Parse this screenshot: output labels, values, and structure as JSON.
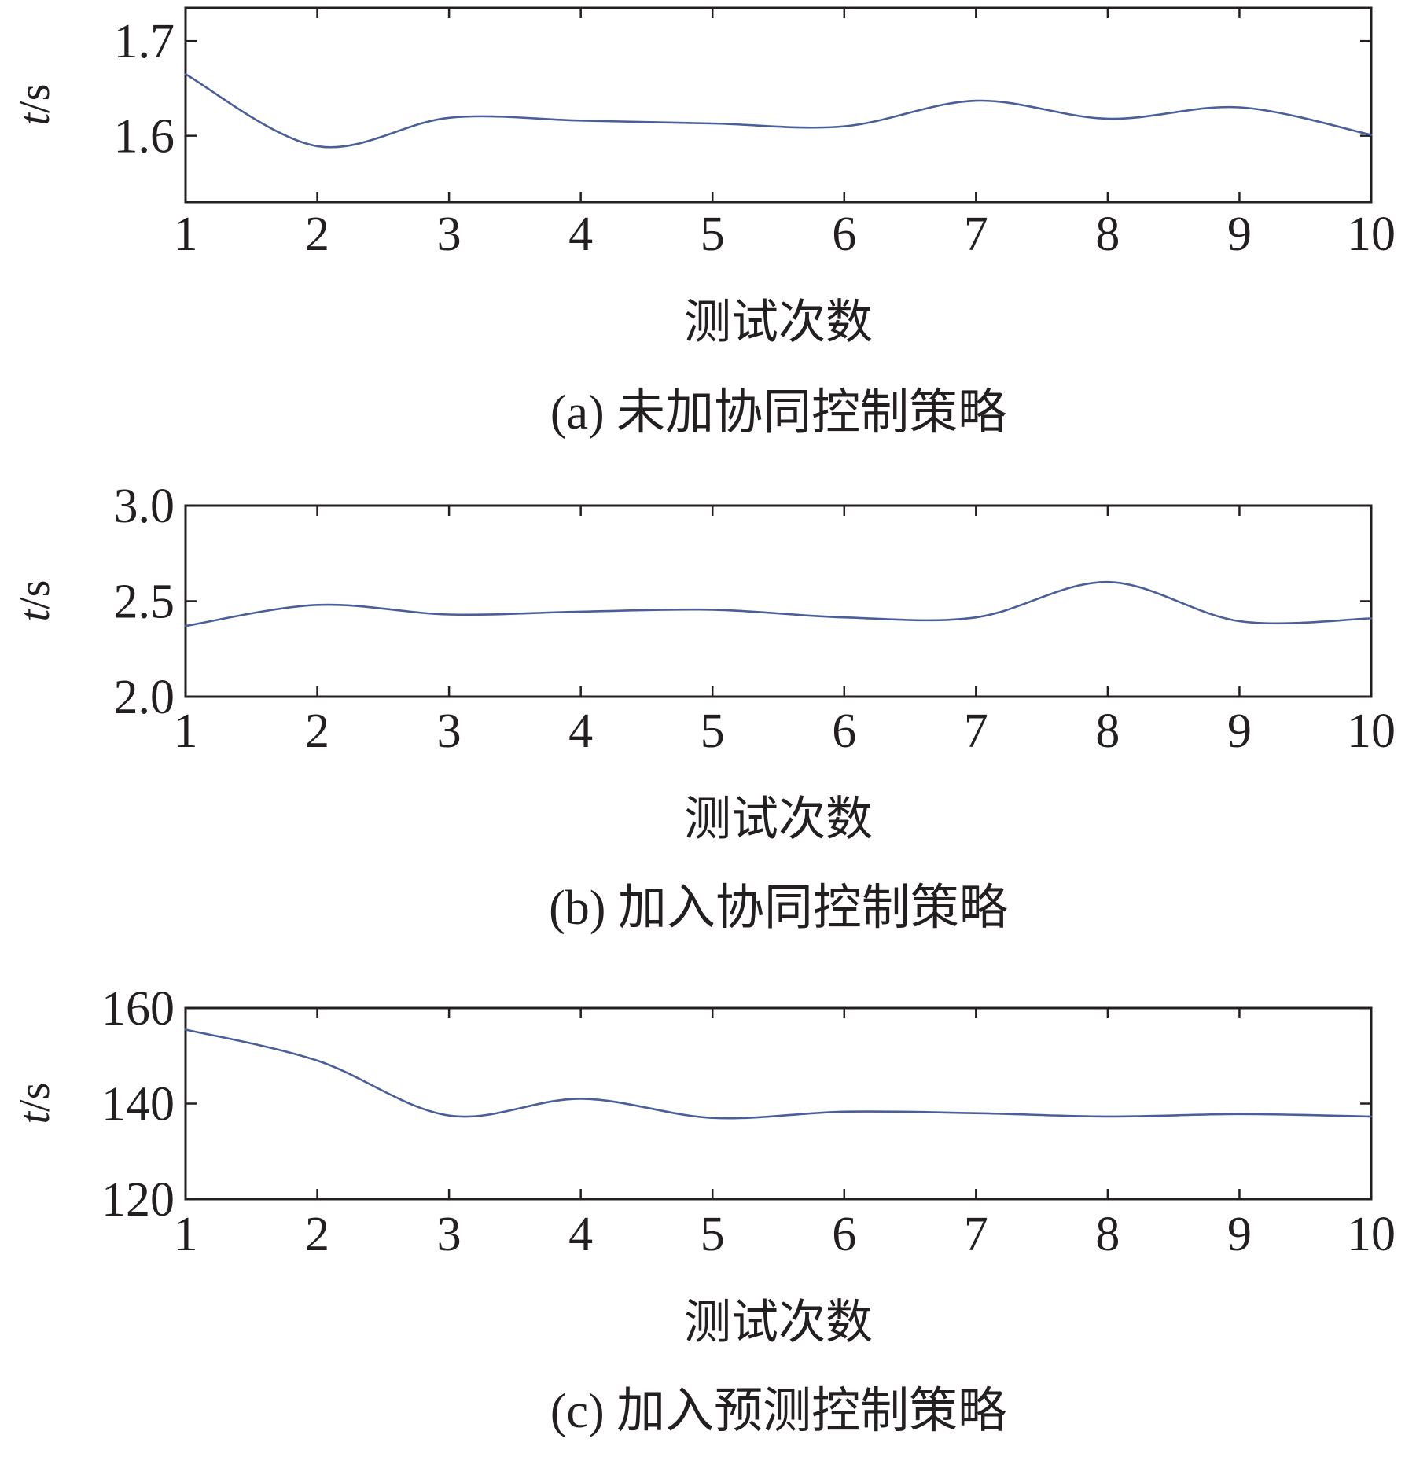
{
  "chart_data": [
    {
      "type": "line",
      "caption": "(a) 未加协同控制策略",
      "xlabel": "测试次数",
      "ylabel_italic": "t",
      "ylabel_unit": "/s",
      "x": [
        1,
        2,
        3,
        4,
        5,
        6,
        7,
        8,
        9,
        10
      ],
      "xticks": [
        "1",
        "2",
        "3",
        "4",
        "5",
        "6",
        "7",
        "8",
        "9",
        "10"
      ],
      "yticks": [
        1.6,
        1.7
      ],
      "ytick_labels": [
        "1.6",
        "1.7"
      ],
      "ylim": [
        1.53,
        1.735
      ],
      "series": [
        {
          "values": [
            1.665,
            1.589,
            1.619,
            1.616,
            1.613,
            1.61,
            1.637,
            1.618,
            1.63,
            1.601
          ]
        }
      ],
      "line_color": "#4a5f9a",
      "smooth": true
    },
    {
      "type": "line",
      "caption": "(b) 加入协同控制策略",
      "xlabel": "测试次数",
      "ylabel_italic": "t",
      "ylabel_unit": "/s",
      "x": [
        1,
        2,
        3,
        4,
        5,
        6,
        7,
        8,
        9,
        10
      ],
      "xticks": [
        "1",
        "2",
        "3",
        "4",
        "5",
        "6",
        "7",
        "8",
        "9",
        "10"
      ],
      "yticks": [
        2.0,
        2.5,
        3.0
      ],
      "ytick_labels": [
        "2.0",
        "2.5",
        "3.0"
      ],
      "ylim": [
        2.0,
        3.0
      ],
      "series": [
        {
          "values": [
            2.37,
            2.48,
            2.43,
            2.445,
            2.455,
            2.415,
            2.415,
            2.6,
            2.395,
            2.41
          ]
        }
      ],
      "line_color": "#4a5f9a",
      "smooth": true
    },
    {
      "type": "line",
      "caption": "(c) 加入预测控制策略",
      "xlabel": "测试次数",
      "ylabel_italic": "t",
      "ylabel_unit": "/s",
      "x": [
        1,
        2,
        3,
        4,
        5,
        6,
        7,
        8,
        9,
        10
      ],
      "xticks": [
        "1",
        "2",
        "3",
        "4",
        "5",
        "6",
        "7",
        "8",
        "9",
        "10"
      ],
      "yticks": [
        120,
        140,
        160
      ],
      "ytick_labels": [
        "120",
        "140",
        "160"
      ],
      "ylim": [
        120,
        160
      ],
      "series": [
        {
          "values": [
            155.5,
            149.0,
            137.5,
            141.0,
            137.0,
            138.3,
            138.0,
            137.3,
            137.8,
            137.3
          ]
        }
      ],
      "line_color": "#4a5f9a",
      "smooth": true
    }
  ]
}
